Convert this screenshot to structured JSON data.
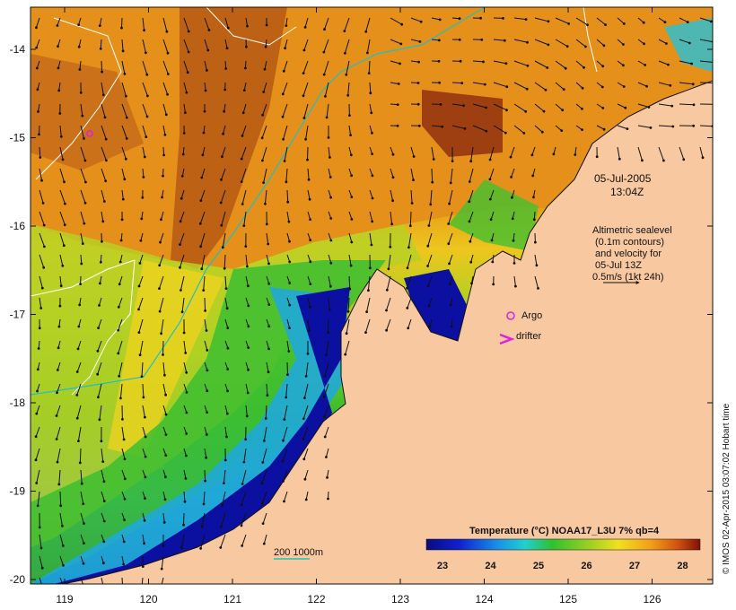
{
  "map": {
    "lon_ticks": [
      "119",
      "120",
      "121",
      "122",
      "123",
      "124",
      "125",
      "126"
    ],
    "lat_ticks": [
      "-14",
      "-15",
      "-16",
      "-17",
      "-18",
      "-19",
      "-20"
    ],
    "date": "05-Jul-2005",
    "time": "13:04Z",
    "altimetry_note": [
      "Altimetric sealevel",
      "(0.1m contours)",
      "and velocity for",
      "05-Jul 13Z",
      "0.5m/s (1kt 24h)"
    ],
    "argo_label": "Argo",
    "drifter_label": "drifter",
    "bathy_label": "200  1000m",
    "colorbar_title": "Temperature (°C) NOAA17_L3U 7% qb=4",
    "colorbar_ticks": [
      "23",
      "24",
      "25",
      "26",
      "27",
      "28"
    ],
    "credit": "© IMOS 02-Apr-2015 03:07:02 Hobart time",
    "colors": {
      "land": "#f8c9a0",
      "warm_dark": "#a94a12",
      "warm": "#e08c16",
      "yellow": "#f0d020",
      "green": "#48c02c",
      "cyan": "#28c0d8",
      "blue": "#1840c0",
      "navy": "#0a0e8c",
      "argo_marker": "#e020e0",
      "bathy_line": "#20c0c0"
    }
  }
}
